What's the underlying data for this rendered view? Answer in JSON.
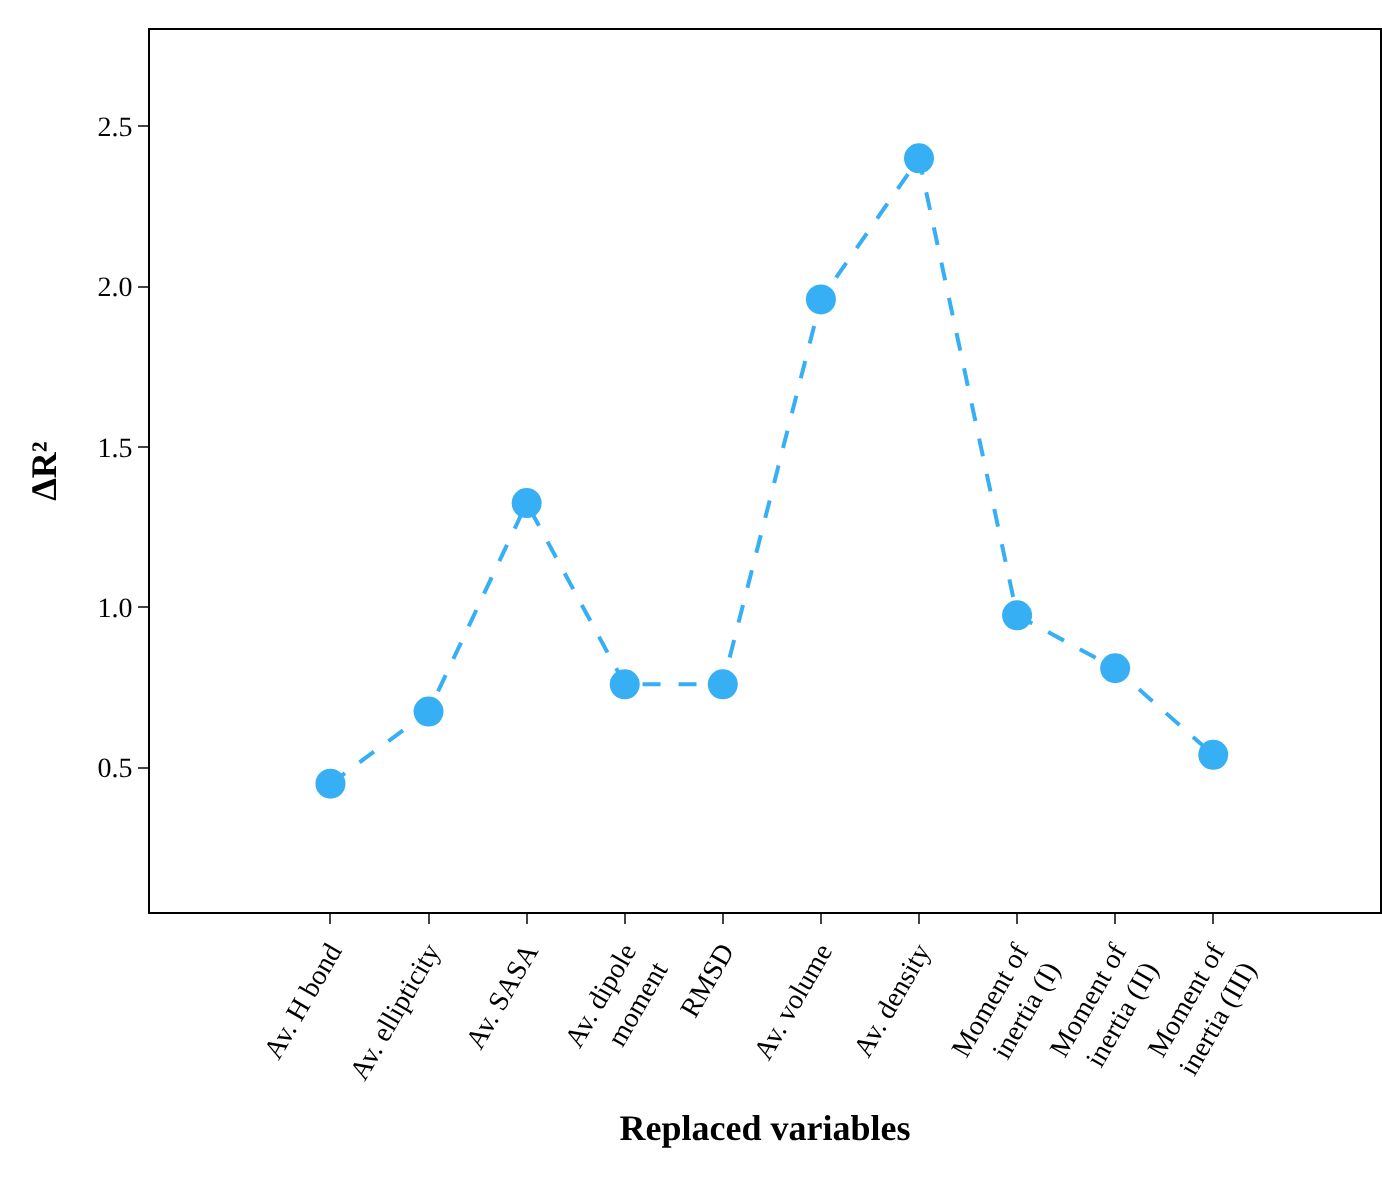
{
  "chart_data": {
    "type": "line",
    "xlabel": "Replaced variables",
    "ylabel": "ΔR²",
    "categories": [
      "Av. H bond",
      "Av. ellipticity",
      "Av. SASA",
      "Av. dipole\nmoment",
      "RMSD",
      "Av. volume",
      "Av. density",
      "Moment of\ninertia (I)",
      "Moment of\ninertia (II)",
      "Moment of\ninertia (III)"
    ],
    "series": [
      {
        "color": "#36aff5",
        "values": [
          0.45,
          0.675,
          1.325,
          0.76,
          0.76,
          1.96,
          2.4,
          0.975,
          0.81,
          0.54
        ]
      }
    ],
    "ylim": [
      0.05,
      2.8
    ],
    "yticks": [
      {
        "value": 0.5,
        "label": "0.5"
      },
      {
        "value": 1.0,
        "label": "1.0"
      },
      {
        "value": 1.5,
        "label": "1.5"
      },
      {
        "value": 2.0,
        "label": "2.0"
      },
      {
        "value": 2.5,
        "label": "2.5"
      }
    ],
    "marker": "circle",
    "line_style": "dashed",
    "grid": false,
    "legend": false
  }
}
